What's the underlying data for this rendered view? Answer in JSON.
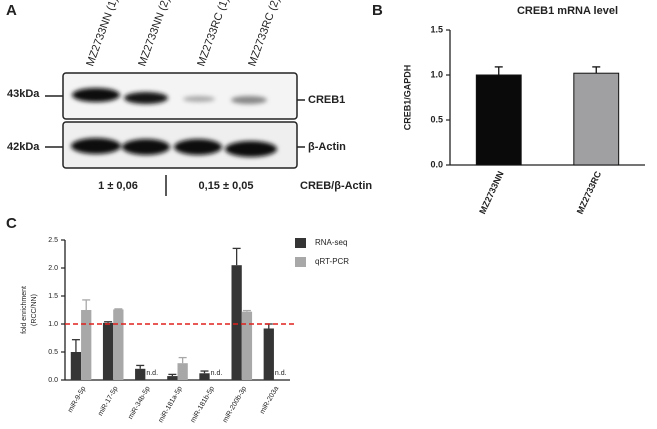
{
  "panels": [
    "A",
    "B",
    "C"
  ],
  "blot": {
    "lanes": [
      "MZ2733NN (1)",
      "MZ2733NN (2)",
      "MZ2733RC (1)",
      "MZ2733RC (2)"
    ],
    "markers": [
      "43kDa",
      "42kDa"
    ],
    "proteins": [
      "CREB1",
      "β-Actin"
    ],
    "quantification": [
      "1 ± 0,06",
      "0,15 ± 0,05"
    ],
    "quantification_label": "CREB/β-Actin"
  },
  "chart_data": [
    {
      "type": "bar",
      "title": "CREB1 mRNA level",
      "ylabel": "CREB1/GAPDH",
      "categories": [
        "MZ2733NN",
        "MZ2733RC"
      ],
      "values": [
        1.0,
        1.02
      ],
      "errors": [
        0.09,
        0.07
      ],
      "colors": [
        "#0a0a0a",
        "#a0a0a2"
      ],
      "ylim": [
        0,
        1.5
      ],
      "yticks": [
        {
          "value": 0,
          "label": "0.0"
        },
        {
          "value": 0.5,
          "label": "0.5"
        },
        {
          "value": 1,
          "label": "1.0"
        },
        {
          "value": 1.5,
          "label": "1.5"
        }
      ]
    },
    {
      "type": "bar",
      "ylabel": [
        "fold enrichment",
        "(RCC/NN)"
      ],
      "categories": [
        "miR-9-5p",
        "miR-17-5p",
        "miR-34b-5p",
        "miR-181a-5p",
        "miR-181b-5p",
        "miR-200b-3p",
        "miR-203a"
      ],
      "series": [
        {
          "name": "RNA-seq",
          "color": "#353535",
          "values": [
            0.5,
            1.02,
            0.2,
            0.07,
            0.12,
            2.05,
            0.92
          ],
          "errors": [
            0.22,
            0.02,
            0.06,
            0.03,
            0.04,
            0.3,
            0.08
          ]
        },
        {
          "name": "qRT-PCR",
          "color": "#a8a8a8",
          "values": [
            1.25,
            1.26,
            null,
            0.3,
            null,
            1.22,
            null
          ],
          "errors": [
            0.18,
            0.01,
            null,
            0.1,
            null,
            0.02,
            null
          ]
        }
      ],
      "ylim": [
        0,
        2.5
      ],
      "yticks": [
        {
          "value": 0,
          "label": "0.0"
        },
        {
          "value": 0.5,
          "label": "0.5"
        },
        {
          "value": 1,
          "label": "1.0"
        },
        {
          "value": 1.5,
          "label": "1.5"
        },
        {
          "value": 2,
          "label": "2.0"
        },
        {
          "value": 2.5,
          "label": "2.5"
        }
      ],
      "reference_line": {
        "value": 1,
        "color": "#e0201c"
      },
      "missing_label": "n.d."
    }
  ]
}
